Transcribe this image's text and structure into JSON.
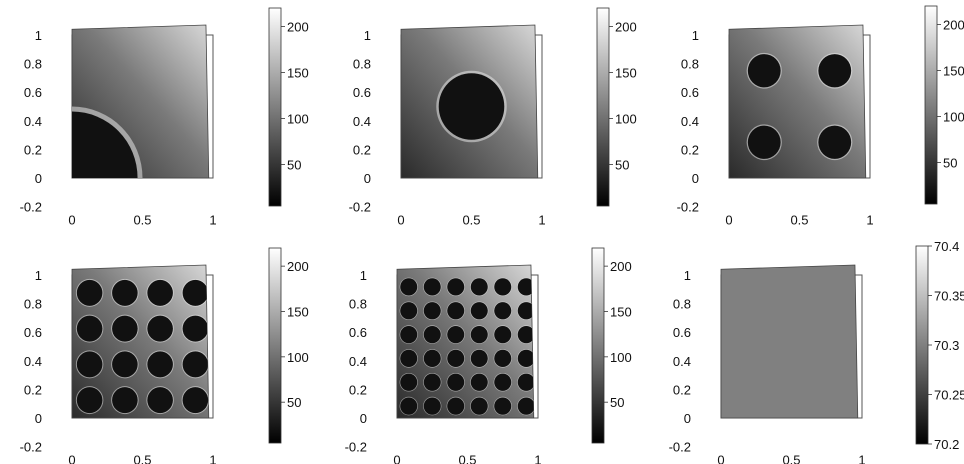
{
  "chart_data": [
    {
      "type": "heatmap",
      "xticks": [
        "0",
        "0.5",
        "1"
      ],
      "yticks": [
        "-0.2",
        "0",
        "0.2",
        "0.4",
        "0.6",
        "0.8",
        "1"
      ],
      "xlim": [
        -0.2,
        1.3
      ],
      "ylim": [
        -0.2,
        1.2
      ],
      "colorbar": {
        "ticks": [
          "50",
          "100",
          "150",
          "200"
        ],
        "range": [
          5,
          220
        ]
      },
      "holes": [
        {
          "cx": 0.0,
          "cy": 0.0,
          "r": 0.5
        }
      ],
      "grid": false
    },
    {
      "type": "heatmap",
      "xticks": [
        "0",
        "0.5",
        "1"
      ],
      "yticks": [
        "-0.2",
        "0",
        "0.2",
        "0.4",
        "0.6",
        "0.8",
        "1"
      ],
      "xlim": [
        -0.2,
        1.3
      ],
      "ylim": [
        -0.2,
        1.2
      ],
      "colorbar": {
        "ticks": [
          "50",
          "100",
          "150",
          "200"
        ],
        "range": [
          5,
          220
        ]
      },
      "holes": [
        {
          "cx": 0.5,
          "cy": 0.5,
          "r": 0.25
        }
      ],
      "grid": false
    },
    {
      "type": "heatmap",
      "xticks": [
        "0",
        "0.5",
        "1"
      ],
      "yticks": [
        "-0.2",
        "0",
        "0.2",
        "0.4",
        "0.6",
        "0.8",
        "1"
      ],
      "xlim": [
        -0.2,
        1.3
      ],
      "ylim": [
        -0.2,
        1.2
      ],
      "colorbar": {
        "ticks": [
          "50",
          "100",
          "150",
          "200"
        ],
        "range": [
          5,
          220
        ]
      },
      "holes": [
        {
          "cx": 0.25,
          "cy": 0.25,
          "r": 0.125
        },
        {
          "cx": 0.75,
          "cy": 0.25,
          "r": 0.125
        },
        {
          "cx": 0.25,
          "cy": 0.75,
          "r": 0.125
        },
        {
          "cx": 0.75,
          "cy": 0.75,
          "r": 0.125
        }
      ],
      "grid": false
    },
    {
      "type": "heatmap",
      "xticks": [
        "0",
        "0.5",
        "1"
      ],
      "yticks": [
        "-0.2",
        "0",
        "0.2",
        "0.4",
        "0.6",
        "0.8",
        "1"
      ],
      "xlim": [
        -0.2,
        1.3
      ],
      "ylim": [
        -0.2,
        1.2
      ],
      "colorbar": {
        "ticks": [
          "50",
          "100",
          "150",
          "200"
        ],
        "range": [
          5,
          220
        ]
      },
      "hole_grid": 4,
      "grid": false
    },
    {
      "type": "heatmap",
      "xticks": [
        "0",
        "0.5",
        "1"
      ],
      "yticks": [
        "-0.2",
        "0",
        "0.2",
        "0.4",
        "0.6",
        "0.8",
        "1"
      ],
      "xlim": [
        -0.2,
        1.3
      ],
      "ylim": [
        -0.2,
        1.2
      ],
      "colorbar": {
        "ticks": [
          "50",
          "100",
          "150",
          "200"
        ],
        "range": [
          5,
          220
        ]
      },
      "hole_grid": 6,
      "grid": false
    },
    {
      "type": "heatmap",
      "xticks": [
        "0",
        "0.5",
        "1"
      ],
      "yticks": [
        "-0.2",
        "0",
        "0.2",
        "0.4",
        "0.6",
        "0.8",
        "1"
      ],
      "xlim": [
        -0.2,
        1.3
      ],
      "ylim": [
        -0.2,
        1.2
      ],
      "colorbar": {
        "ticks": [
          "70.2",
          "70.25",
          "70.3",
          "70.35",
          "70.4"
        ],
        "range": [
          70.2,
          70.4
        ]
      },
      "uniform_value": 70.3,
      "grid": false
    }
  ]
}
